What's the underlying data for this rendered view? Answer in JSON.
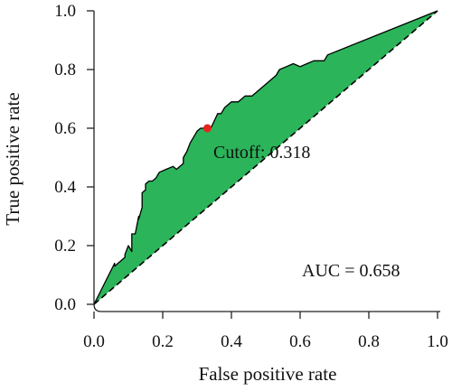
{
  "chart_data": {
    "type": "area",
    "xlabel": "False positive rate",
    "ylabel": "True positive rate",
    "xlim": [
      0,
      1
    ],
    "ylim": [
      0,
      1
    ],
    "x_ticks": [
      "0.0",
      "0.2",
      "0.4",
      "0.6",
      "0.8",
      "1.0"
    ],
    "y_ticks": [
      "0.0",
      "0.2",
      "0.4",
      "0.6",
      "0.8",
      "1.0"
    ],
    "grid": false,
    "series": [
      {
        "kind": "roc-curve",
        "x": [
          0.0,
          0.06,
          0.06,
          0.09,
          0.09,
          0.1,
          0.11,
          0.11,
          0.12,
          0.13,
          0.13,
          0.14,
          0.14,
          0.15,
          0.15,
          0.16,
          0.17,
          0.18,
          0.19,
          0.21,
          0.23,
          0.24,
          0.26,
          0.26,
          0.27,
          0.28,
          0.29,
          0.3,
          0.31,
          0.32,
          0.34,
          0.36,
          0.37,
          0.38,
          0.4,
          0.42,
          0.44,
          0.46,
          0.48,
          0.49,
          0.51,
          0.53,
          0.54,
          0.56,
          0.58,
          0.6,
          0.62,
          0.64,
          0.67,
          0.68,
          1.0
        ],
        "y": [
          0.0,
          0.14,
          0.13,
          0.16,
          0.17,
          0.2,
          0.18,
          0.24,
          0.24,
          0.3,
          0.29,
          0.33,
          0.38,
          0.39,
          0.41,
          0.42,
          0.42,
          0.43,
          0.45,
          0.46,
          0.47,
          0.46,
          0.48,
          0.5,
          0.52,
          0.55,
          0.57,
          0.59,
          0.6,
          0.6,
          0.6,
          0.65,
          0.65,
          0.67,
          0.69,
          0.69,
          0.71,
          0.71,
          0.73,
          0.74,
          0.76,
          0.78,
          0.8,
          0.81,
          0.82,
          0.81,
          0.82,
          0.83,
          0.83,
          0.85,
          1.0
        ],
        "color": "#2bb45a",
        "line_color": "#000000"
      },
      {
        "kind": "chance-diagonal",
        "x": [
          0.0,
          1.0
        ],
        "y": [
          0.0,
          1.0
        ],
        "style": "dashed",
        "color": "#000000"
      }
    ],
    "cutoff_point": {
      "x": 0.33,
      "y": 0.6,
      "color": "#e8231e"
    },
    "annotations": {
      "cutoff": "Cutoff: 0.318",
      "auc": "AUC = 0.658"
    }
  }
}
